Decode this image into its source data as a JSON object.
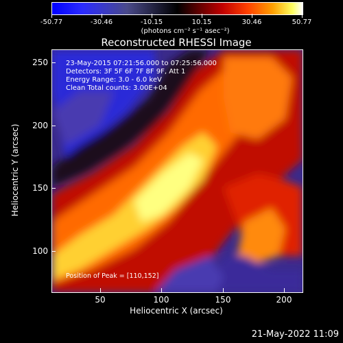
{
  "colorbar": {
    "labels": [
      "-50.77",
      "-30.46",
      "-10.15",
      "10.15",
      "30.46",
      "50.77"
    ],
    "units": "(photons cm⁻² s⁻¹ asec⁻²)"
  },
  "title": "Reconstructed RHESSI Image",
  "info": {
    "line1": "23-May-2015 07:21:56.000 to 07:25:56.000",
    "line2": "Detectors: 3F 5F 6F 7F 8F 9F, Att 1",
    "line3": "Energy Range: 3.0 - 6.0 keV",
    "line4": "Clean     Total counts: 3.00E+04"
  },
  "peak": "Position of Peak = [110,152]",
  "axes": {
    "xlabel": "Heliocentric X (arcsec)",
    "ylabel": "Heliocentric Y (arcsec)",
    "xticks": [
      "50",
      "100",
      "150",
      "200"
    ],
    "yticks": [
      "250",
      "200",
      "150",
      "100"
    ]
  },
  "footer": "21-May-2022 11:09",
  "colors": {
    "low": "#0000ff",
    "zero": "#000000",
    "mid": "#c00000",
    "high": "#ffff60",
    "max": "#ffffff"
  }
}
